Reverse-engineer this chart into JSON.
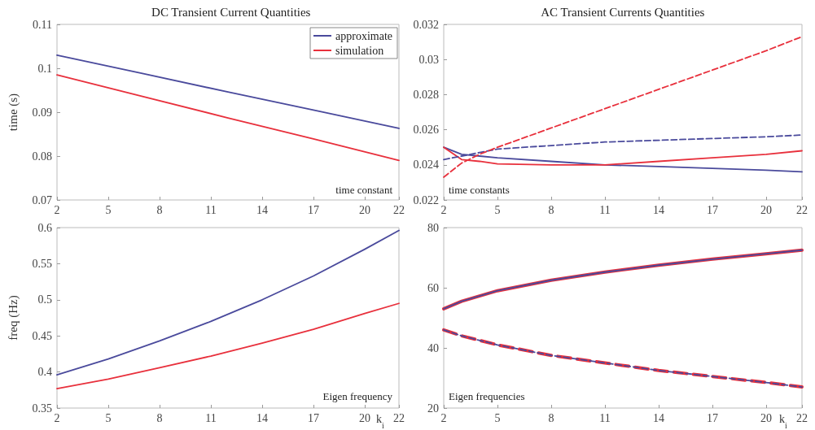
{
  "chart_data": [
    {
      "type": "line",
      "title": "DC Transient Current Quantities",
      "ylabel": "time (s)",
      "annotations": [
        "time constant"
      ],
      "xlim": [
        2,
        22
      ],
      "xticks": [
        2,
        5,
        8,
        11,
        14,
        17,
        20,
        22
      ],
      "ylim": [
        0.07,
        0.11
      ],
      "yticks": [
        0.07,
        0.08,
        0.09,
        0.1,
        0.11
      ],
      "legend": "top right",
      "grid": false,
      "line_style": "solid",
      "marker": "none",
      "x": [
        2,
        7,
        12,
        17,
        22
      ],
      "series": [
        {
          "name": "approximate",
          "color": "#4a4a9c",
          "values": [
            0.103,
            0.0988,
            0.0946,
            0.0905,
            0.0863
          ]
        },
        {
          "name": "simulation",
          "color": "#e8303c",
          "values": [
            0.0985,
            0.0936,
            0.0887,
            0.0839,
            0.079
          ]
        }
      ]
    },
    {
      "type": "line",
      "title": "AC Transient Currents Quantities",
      "annotations": [
        "time constants"
      ],
      "xlim": [
        2,
        22
      ],
      "xticks": [
        2,
        5,
        8,
        11,
        14,
        17,
        20,
        22
      ],
      "ylim": [
        0.022,
        0.032
      ],
      "yticks": [
        0.022,
        0.024,
        0.026,
        0.028,
        0.03,
        0.032
      ],
      "legend": false,
      "grid": false,
      "line_style": "solid",
      "marker": "none",
      "x": [
        2,
        3,
        4,
        5,
        8,
        11,
        14,
        17,
        20,
        22
      ],
      "series": [
        {
          "color": "#4a4a9c",
          "values": [
            0.025,
            0.0246,
            0.0245,
            0.0244,
            0.0242,
            0.024,
            0.0239,
            0.0238,
            0.0237,
            0.0236
          ]
        },
        {
          "color": "#e8303c",
          "values": [
            0.025,
            0.0243,
            0.0242,
            0.02405,
            0.024,
            0.024,
            0.0242,
            0.0244,
            0.0246,
            0.0248
          ]
        },
        {
          "color": "#4a4a9c",
          "line_style": "dashed",
          "values": [
            0.0243,
            0.0245,
            0.0247,
            0.0249,
            0.0251,
            0.0253,
            0.0254,
            0.0255,
            0.0256,
            0.0257
          ]
        },
        {
          "color": "#e8303c",
          "line_style": "dashed",
          "values": [
            0.0233,
            0.0241,
            0.0246,
            0.025,
            0.0261,
            0.0272,
            0.0283,
            0.0294,
            0.0305,
            0.0313
          ]
        }
      ]
    },
    {
      "type": "line",
      "ylabel": "freq (Hz)",
      "xlabel": "k$_{i}$",
      "annotations": [
        "Eigen frequency"
      ],
      "xlim": [
        2,
        22
      ],
      "xticks": [
        2,
        5,
        8,
        11,
        14,
        17,
        20,
        22
      ],
      "ylim": [
        0.35,
        0.6
      ],
      "yticks": [
        0.35,
        0.4,
        0.45,
        0.5,
        0.55,
        0.6
      ],
      "legend": false,
      "grid": false,
      "line_style": "solid",
      "marker": "none",
      "x": [
        2,
        5,
        8,
        11,
        14,
        17,
        20,
        22
      ],
      "series": [
        {
          "color": "#4a4a9c",
          "values": [
            0.396,
            0.418,
            0.443,
            0.47,
            0.5,
            0.533,
            0.57,
            0.596
          ]
        },
        {
          "color": "#e8303c",
          "values": [
            0.377,
            0.39,
            0.406,
            0.422,
            0.44,
            0.459,
            0.481,
            0.495
          ]
        }
      ]
    },
    {
      "type": "line",
      "xlabel": "k$_{i}$",
      "annotations": [
        "Eigen frequencies"
      ],
      "xlim": [
        2,
        22
      ],
      "xticks": [
        2,
        5,
        8,
        11,
        14,
        17,
        20,
        22
      ],
      "ylim": [
        20,
        80
      ],
      "yticks": [
        20,
        40,
        60,
        80
      ],
      "legend": false,
      "grid": false,
      "line_style": "solid",
      "marker": "none",
      "x": [
        2,
        3,
        5,
        8,
        11,
        14,
        17,
        20,
        22
      ],
      "series": [
        {
          "color": "#e8303c",
          "values": [
            53,
            55.5,
            59,
            62.5,
            65.2,
            67.5,
            69.5,
            71.3,
            72.5
          ]
        },
        {
          "color": "#4a4a9c",
          "values": [
            53,
            55.5,
            59,
            62.5,
            65.2,
            67.5,
            69.5,
            71.3,
            72.5
          ]
        },
        {
          "color": "#e8303c",
          "line_style": "dashed",
          "values": [
            46,
            44,
            41,
            37.5,
            35,
            32.5,
            30.5,
            28.5,
            27
          ]
        },
        {
          "color": "#4a4a9c",
          "line_style": "dashed",
          "values": [
            46,
            44,
            41,
            37.5,
            35,
            32.5,
            30.5,
            28.5,
            27
          ]
        }
      ]
    }
  ]
}
